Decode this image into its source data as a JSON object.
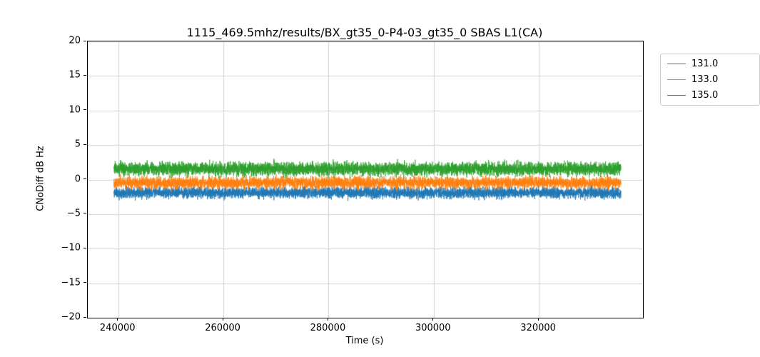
{
  "title": "1115_469.5mhz/results/BX_gt35_0-P4-03_gt35_0 SBAS L1(CA)",
  "chart_data": {
    "type": "line",
    "title": "1115_469.5mhz/results/BX_gt35_0-P4-03_gt35_0 SBAS L1(CA)",
    "xlabel": "Time (s)",
    "ylabel": "CNoDiff dB Hz",
    "xlim": [
      234200,
      339800
    ],
    "ylim": [
      -20,
      20
    ],
    "xticks": [
      240000,
      260000,
      280000,
      300000,
      320000
    ],
    "yticks": [
      20,
      15,
      10,
      5,
      0,
      -5,
      -10,
      -15,
      -20
    ],
    "grid": true,
    "grid_color": "#d3d3d3",
    "x_data_range": [
      239200,
      335600
    ],
    "legend": {
      "position": "upper-right-outside",
      "entries": [
        {
          "label": "131.0",
          "color": "#1f77b4"
        },
        {
          "label": "133.0",
          "color": "#ff7f0e"
        },
        {
          "label": "135.0",
          "color": "#2ca02c"
        }
      ]
    },
    "series": [
      {
        "name": "131.0",
        "color": "#1f77b4",
        "mean": -1.9,
        "noise_sd": 0.4,
        "seed": 11,
        "points": 6000
      },
      {
        "name": "133.0",
        "color": "#ff7f0e",
        "mean": -0.45,
        "noise_sd": 0.42,
        "seed": 22,
        "points": 6000
      },
      {
        "name": "135.0",
        "color": "#2ca02c",
        "mean": 1.55,
        "noise_sd": 0.48,
        "seed": 33,
        "points": 6000
      }
    ]
  }
}
